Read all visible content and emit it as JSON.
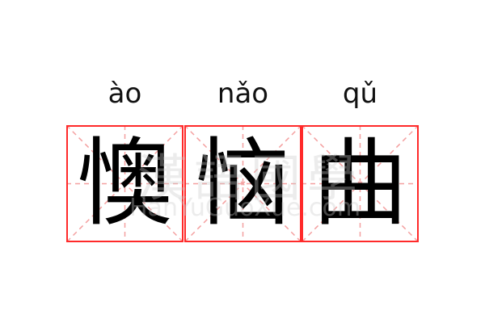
{
  "characters": [
    {
      "pinyin": "ào",
      "hanzi": "懊"
    },
    {
      "pinyin": "nǎo",
      "hanzi": "恼"
    },
    {
      "pinyin": "qǔ",
      "hanzi": "曲"
    }
  ],
  "watermark": {
    "logo": "漢語國學",
    "url": "HanYuGuoXue.com"
  },
  "colors": {
    "border": "#ff2a2a",
    "guide": "#f4a0a0",
    "text": "#000000"
  }
}
